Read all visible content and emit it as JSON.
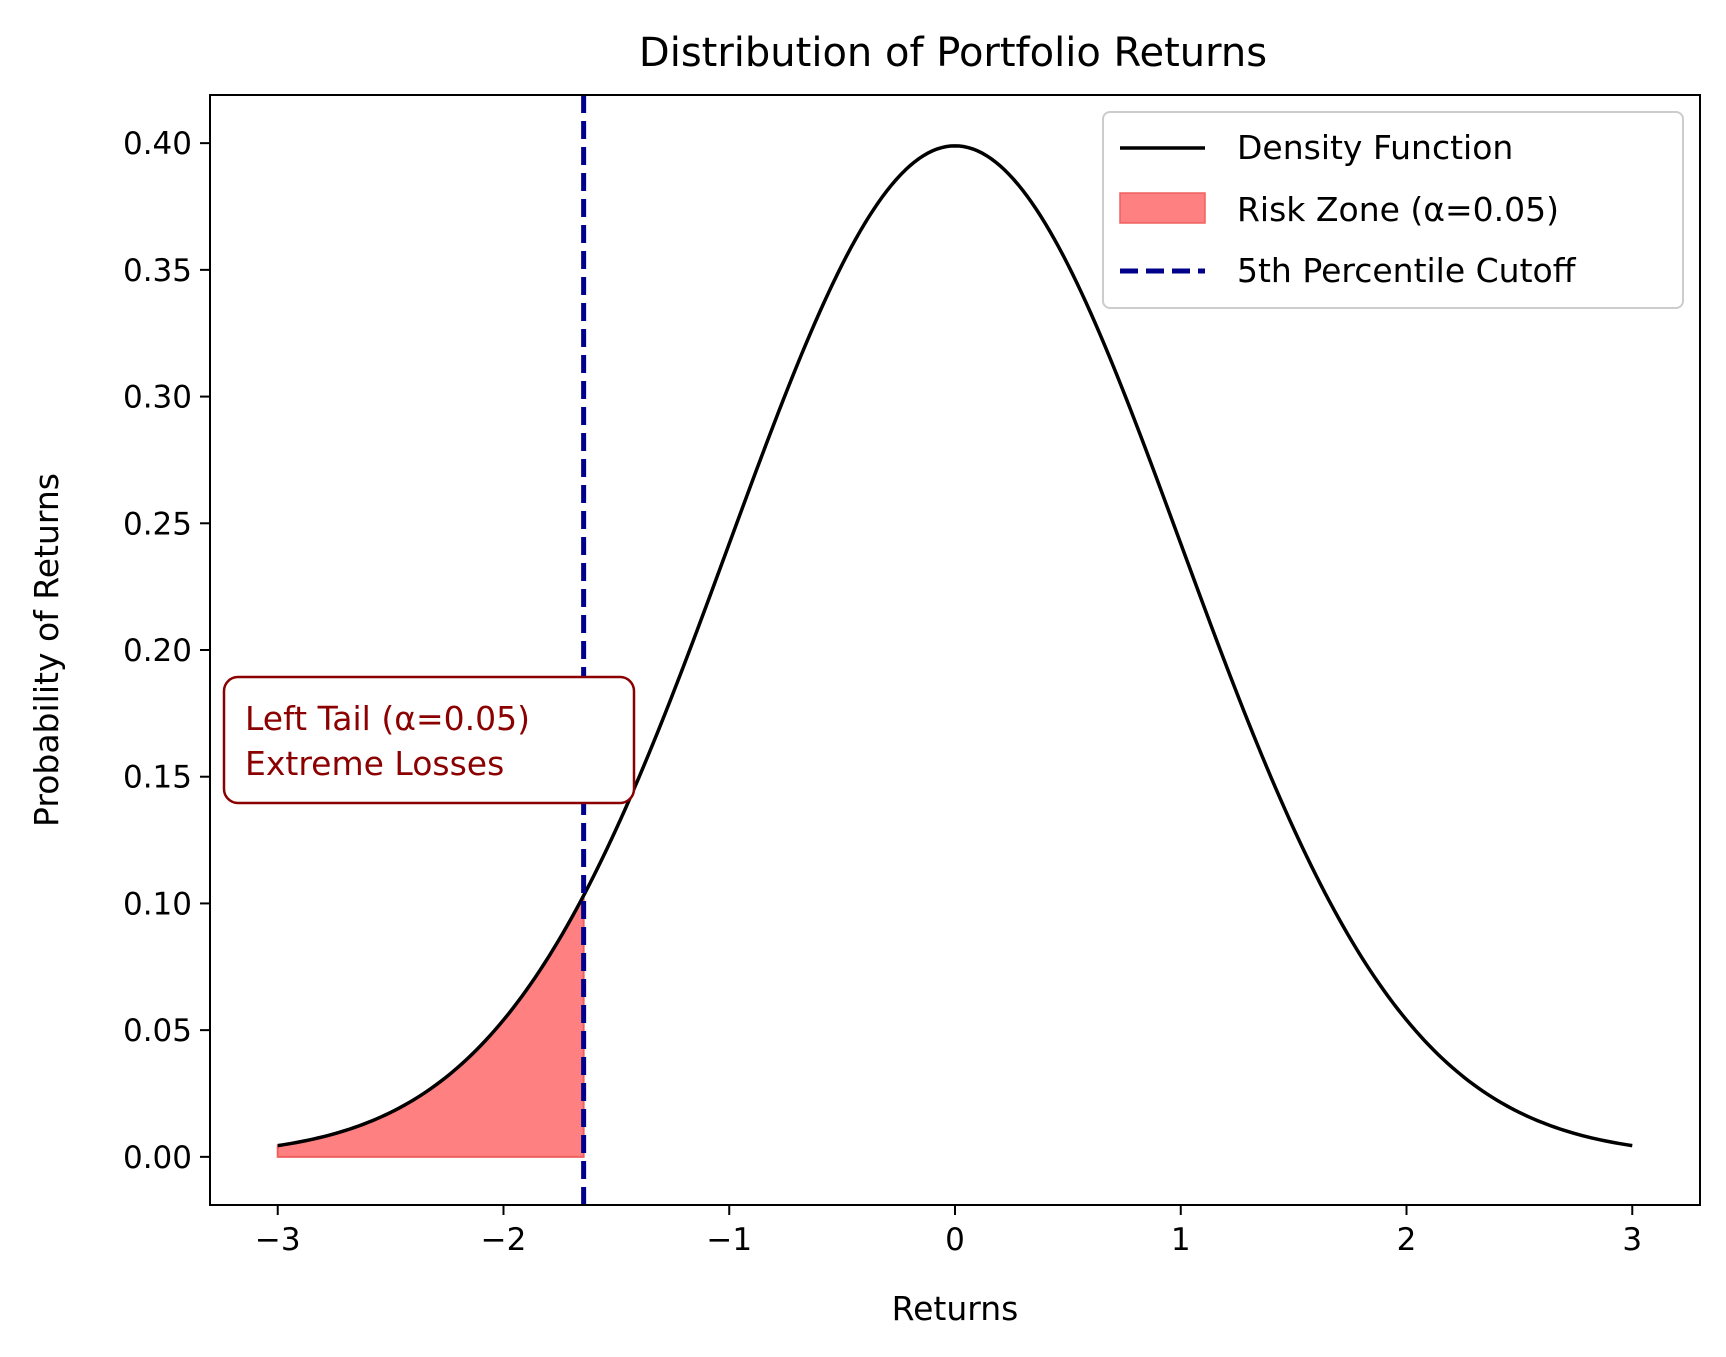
{
  "chart_data": {
    "type": "line",
    "title": "Distribution of Portfolio Returns",
    "xlabel": "Returns",
    "ylabel": "Probability of Returns",
    "xlim": [
      -3.3,
      3.3
    ],
    "ylim": [
      -0.019,
      0.419
    ],
    "grid": false,
    "xticks": [
      -3,
      -2,
      -1,
      0,
      1,
      2,
      3
    ],
    "xtick_labels": [
      "−3",
      "−2",
      "−1",
      "0",
      "1",
      "2",
      "3"
    ],
    "yticks": [
      0.0,
      0.05,
      0.1,
      0.15,
      0.2,
      0.25,
      0.3,
      0.35,
      0.4
    ],
    "ytick_labels": [
      "0.00",
      "0.05",
      "0.10",
      "0.15",
      "0.20",
      "0.25",
      "0.30",
      "0.35",
      "0.40"
    ],
    "series": [
      {
        "name": "Density Function",
        "kind": "line",
        "color": "#000000",
        "x": [
          -3.0,
          -2.75,
          -2.5,
          -2.25,
          -2.0,
          -1.75,
          -1.645,
          -1.5,
          -1.25,
          -1.0,
          -0.75,
          -0.5,
          -0.25,
          0.0,
          0.25,
          0.5,
          0.75,
          1.0,
          1.25,
          1.5,
          1.75,
          2.0,
          2.25,
          2.5,
          2.75,
          3.0
        ],
        "y": [
          0.0044,
          0.0091,
          0.0175,
          0.0317,
          0.054,
          0.0863,
          0.1031,
          0.1295,
          0.1826,
          0.242,
          0.3011,
          0.3521,
          0.3867,
          0.3989,
          0.3867,
          0.3521,
          0.3011,
          0.242,
          0.1826,
          0.1295,
          0.0863,
          0.054,
          0.0317,
          0.0175,
          0.0091,
          0.0044
        ]
      },
      {
        "name": "Risk Zone (α=0.05)",
        "kind": "area",
        "color": "#ff8080",
        "edge_color": "#f06060",
        "x_range": [
          -3.0,
          -1.645
        ]
      },
      {
        "name": "5th Percentile Cutoff",
        "kind": "vline",
        "color": "#00008b",
        "x": -1.645
      }
    ],
    "legend": {
      "position": "top-right",
      "entries": [
        "Density Function",
        "Risk Zone (α=0.05)",
        "5th Percentile Cutoff"
      ]
    },
    "annotation": {
      "lines": [
        "Left Tail (α=0.05)",
        "Extreme Losses"
      ],
      "color": "#8b0000"
    }
  }
}
